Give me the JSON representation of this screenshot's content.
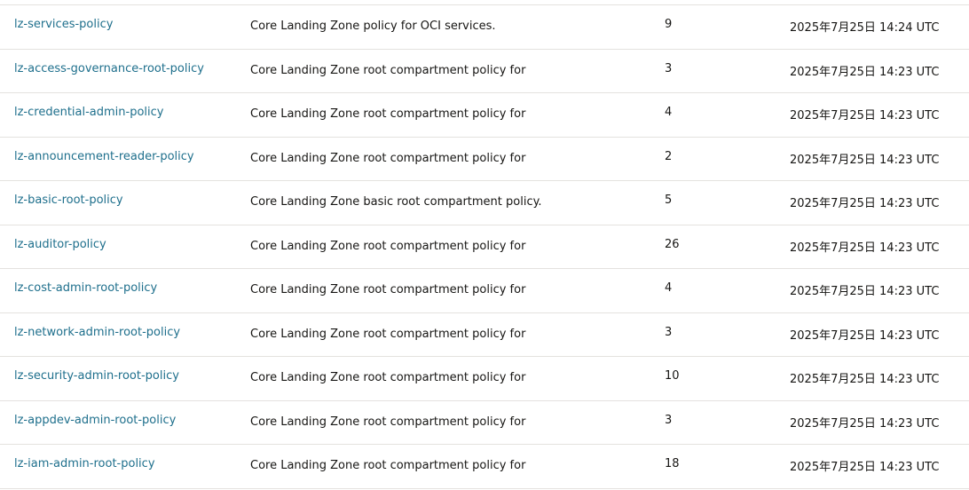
{
  "policies": [
    {
      "name": "lz-services-policy",
      "description": "Core Landing Zone policy for OCI services.",
      "statements": "9",
      "created": "2025年7月25日 14:24 UTC"
    },
    {
      "name": "lz-access-governance-root-policy",
      "description": "Core Landing Zone root compartment policy for",
      "statements": "3",
      "created": "2025年7月25日 14:23 UTC"
    },
    {
      "name": "lz-credential-admin-policy",
      "description": "Core Landing Zone root compartment policy for",
      "statements": "4",
      "created": "2025年7月25日 14:23 UTC"
    },
    {
      "name": "lz-announcement-reader-policy",
      "description": "Core Landing Zone root compartment policy for",
      "statements": "2",
      "created": "2025年7月25日 14:23 UTC"
    },
    {
      "name": "lz-basic-root-policy",
      "description": "Core Landing Zone basic root compartment policy.",
      "statements": "5",
      "created": "2025年7月25日 14:23 UTC"
    },
    {
      "name": "lz-auditor-policy",
      "description": "Core Landing Zone root compartment policy for",
      "statements": "26",
      "created": "2025年7月25日 14:23 UTC"
    },
    {
      "name": "lz-cost-admin-root-policy",
      "description": "Core Landing Zone root compartment policy for",
      "statements": "4",
      "created": "2025年7月25日 14:23 UTC"
    },
    {
      "name": "lz-network-admin-root-policy",
      "description": "Core Landing Zone root compartment policy for",
      "statements": "3",
      "created": "2025年7月25日 14:23 UTC"
    },
    {
      "name": "lz-security-admin-root-policy",
      "description": "Core Landing Zone root compartment policy for",
      "statements": "10",
      "created": "2025年7月25日 14:23 UTC"
    },
    {
      "name": "lz-appdev-admin-root-policy",
      "description": "Core Landing Zone root compartment policy for",
      "statements": "3",
      "created": "2025年7月25日 14:23 UTC"
    },
    {
      "name": "lz-iam-admin-root-policy",
      "description": "Core Landing Zone root compartment policy for",
      "statements": "18",
      "created": "2025年7月25日 14:23 UTC"
    }
  ],
  "colors": {
    "link": "#1e6f8c",
    "text": "#161513",
    "divider": "#e4e2df"
  }
}
